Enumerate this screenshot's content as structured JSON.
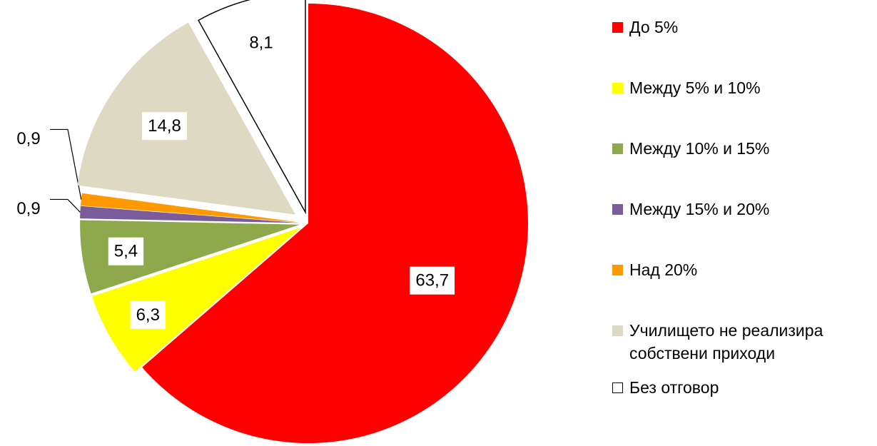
{
  "chart_data": {
    "type": "pie",
    "categories": [
      "До 5%",
      "Между 5% и 10%",
      "Между 10% и 15%",
      "Между 15% и 20%",
      "Над 20%",
      "Училището не реализира собствени приходи",
      "Без отговор"
    ],
    "values": [
      63.7,
      6.3,
      5.4,
      0.9,
      0.9,
      14.8,
      8.1
    ],
    "value_labels": [
      "63,7",
      "6,3",
      "5,4",
      "0,9",
      "0,9",
      "14,8",
      "8,1"
    ],
    "colors": [
      "#ff0000",
      "#ffff00",
      "#8ea84c",
      "#7a5c9a",
      "#ff9900",
      "#ddd9c3",
      "#ffffff"
    ],
    "legend": "right"
  }
}
